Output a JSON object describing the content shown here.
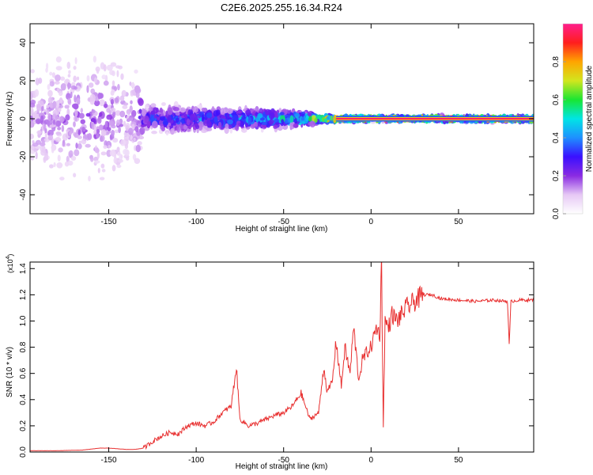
{
  "figure": {
    "title": "C2E6.2025.255.16.34.R24"
  },
  "chart_data": [
    {
      "type": "heatmap",
      "title": "C2E6.2025.255.16.34.R24",
      "xlabel": "Height of straight line (km)",
      "ylabel": "Frequency (Hz)",
      "xlim": [
        -195,
        93
      ],
      "ylim": [
        -50,
        50
      ],
      "x_ticks": [
        -150,
        -100,
        -50,
        0,
        50
      ],
      "x_tick_labels": [
        "-150",
        "-100",
        "-50",
        "0",
        "50"
      ],
      "y_ticks": [
        -40,
        -20,
        0,
        20,
        40
      ],
      "y_tick_labels": [
        "-40",
        "-20",
        "0",
        "20",
        "40"
      ],
      "colorbar": {
        "label": "Normalized spectral amplitude",
        "range": [
          0,
          1
        ],
        "ticks": [
          0.0,
          0.2,
          0.4,
          0.6,
          0.8
        ],
        "tick_labels": [
          "0.0",
          "0.2",
          "0.4",
          "0.6",
          "0.8"
        ],
        "colormap": [
          "#ffffff",
          "#e6c8f5",
          "#8a2be2",
          "#3a10ff",
          "#1e90ff",
          "#00e5e5",
          "#19e632",
          "#d2e61e",
          "#ffa500",
          "#ff1e1e",
          "#ff1e8c"
        ]
      },
      "band": {
        "center_frequency_hz": 0,
        "description": "Noise-like scatter at heights below about -130 km; turbulent spectral band from -130 km to about -20 km; narrow stable line near 0 Hz above -20 km",
        "profile": [
          {
            "x": -195,
            "spread_hz": 50,
            "intensity": 0.15
          },
          {
            "x": -160,
            "spread_hz": 50,
            "intensity": 0.2
          },
          {
            "x": -135,
            "spread_hz": 48,
            "intensity": 0.15
          },
          {
            "x": -130,
            "spread_hz": 10,
            "intensity": 0.35
          },
          {
            "x": -100,
            "spread_hz": 9,
            "intensity": 0.4
          },
          {
            "x": -80,
            "spread_hz": 8,
            "intensity": 0.45
          },
          {
            "x": -60,
            "spread_hz": 7,
            "intensity": 0.5
          },
          {
            "x": -40,
            "spread_hz": 5,
            "intensity": 0.6
          },
          {
            "x": -30,
            "spread_hz": 3,
            "intensity": 0.8
          },
          {
            "x": -20,
            "spread_hz": 2,
            "intensity": 0.85
          },
          {
            "x": 0,
            "spread_hz": 1.5,
            "intensity": 0.9
          },
          {
            "x": 20,
            "spread_hz": 1.5,
            "intensity": 0.95
          },
          {
            "x": 93,
            "spread_hz": 1.5,
            "intensity": 0.97
          }
        ]
      }
    },
    {
      "type": "line",
      "title": "",
      "xlabel": "Height of straight line (km)",
      "ylabel": "SNR (10 * v/v)",
      "y_multiplier_label": "(x10",
      "y_multiplier_exponent": "4",
      "xlim": [
        -195,
        93
      ],
      "ylim": [
        0.0,
        1.45
      ],
      "x_ticks": [
        -150,
        -100,
        -50,
        0,
        50
      ],
      "x_tick_labels": [
        "-150",
        "-100",
        "-50",
        "0",
        "50"
      ],
      "y_ticks": [
        0.0,
        0.2,
        0.4,
        0.6,
        0.8,
        1.0,
        1.2,
        1.4
      ],
      "y_tick_labels": [
        "0.0",
        "0.2",
        "0.4",
        "0.6",
        "0.8",
        "1.0",
        "1.2",
        "1.4"
      ],
      "color": "#e83030",
      "series": [
        {
          "name": "SNR",
          "x": [
            -195,
            -180,
            -165,
            -155,
            -150,
            -145,
            -140,
            -135,
            -130,
            -125,
            -120,
            -115,
            -110,
            -105,
            -100,
            -95,
            -90,
            -85,
            -80,
            -77,
            -75,
            -70,
            -65,
            -60,
            -55,
            -50,
            -45,
            -40,
            -35,
            -30,
            -27,
            -25,
            -22,
            -20,
            -17,
            -15,
            -12,
            -10,
            -7,
            -5,
            -3,
            0,
            3,
            5,
            6,
            7,
            8,
            10,
            12,
            15,
            20,
            25,
            30,
            35,
            40,
            50,
            60,
            70,
            78,
            79,
            80,
            85,
            93
          ],
          "values": [
            0.01,
            0.01,
            0.015,
            0.03,
            0.03,
            0.025,
            0.02,
            0.02,
            0.03,
            0.08,
            0.12,
            0.15,
            0.14,
            0.2,
            0.22,
            0.2,
            0.23,
            0.3,
            0.35,
            0.65,
            0.25,
            0.2,
            0.22,
            0.25,
            0.28,
            0.3,
            0.35,
            0.45,
            0.25,
            0.3,
            0.65,
            0.45,
            0.55,
            0.85,
            0.5,
            0.8,
            0.6,
            0.95,
            0.55,
            0.7,
            0.75,
            0.8,
            0.95,
            0.9,
            1.45,
            0.2,
            1.0,
            0.95,
            1.05,
            1.0,
            1.1,
            1.15,
            1.2,
            1.2,
            1.17,
            1.16,
            1.15,
            1.16,
            1.15,
            0.82,
            1.15,
            1.16,
            1.16
          ]
        }
      ]
    }
  ]
}
